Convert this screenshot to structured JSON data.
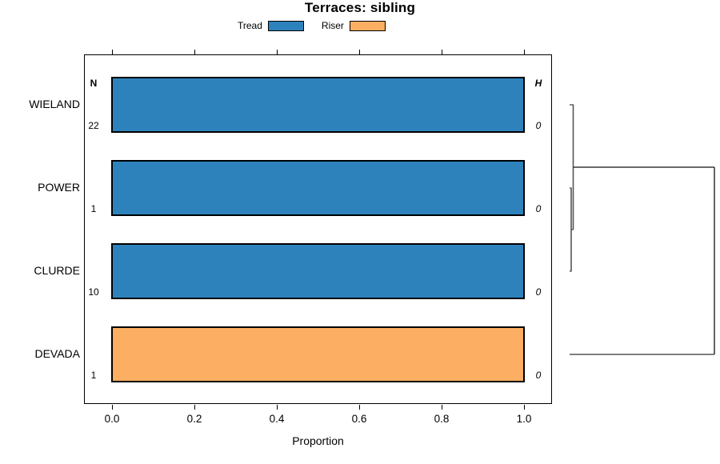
{
  "title": "Terraces: sibling",
  "legend": {
    "items": [
      {
        "label": "Tread",
        "color": "#2D82BC"
      },
      {
        "label": "Riser",
        "color": "#FCAE62"
      }
    ]
  },
  "columns": {
    "n_header": "N",
    "h_header": "H"
  },
  "axis": {
    "xlabel": "Proportion",
    "ticks": [
      "0.0",
      "0.2",
      "0.4",
      "0.6",
      "0.8",
      "1.0"
    ],
    "xlim": [
      0.0,
      1.0
    ]
  },
  "chart_data": {
    "type": "bar",
    "orientation": "horizontal",
    "title": "Terraces: sibling",
    "xlabel": "Proportion",
    "xlim": [
      0.0,
      1.0
    ],
    "grid": false,
    "legend_position": "top",
    "categories": [
      "WIELAND",
      "POWER",
      "CLURDE",
      "DEVADA"
    ],
    "series": [
      {
        "name": "Tread",
        "color": "#2D82BC"
      },
      {
        "name": "Riser",
        "color": "#FCAE62"
      }
    ],
    "rows": [
      {
        "label": "WIELAND",
        "n": "22",
        "h": "0",
        "series": "Tread",
        "proportion": 1.0
      },
      {
        "label": "POWER",
        "n": "1",
        "h": "0",
        "series": "Tread",
        "proportion": 1.0
      },
      {
        "label": "CLURDE",
        "n": "10",
        "h": "0",
        "series": "Tread",
        "proportion": 1.0
      },
      {
        "label": "DEVADA",
        "n": "1",
        "h": "0",
        "series": "Riser",
        "proportion": 1.0
      }
    ],
    "dendrogram": {
      "side": "right",
      "structure": "((WIELAND,(POWER,CLURDE)),DEVADA)",
      "note": "POWER and CLURDE merge first at near-zero height, then WIELAND joins; DEVADA joins last at the root (maximum height)"
    }
  }
}
